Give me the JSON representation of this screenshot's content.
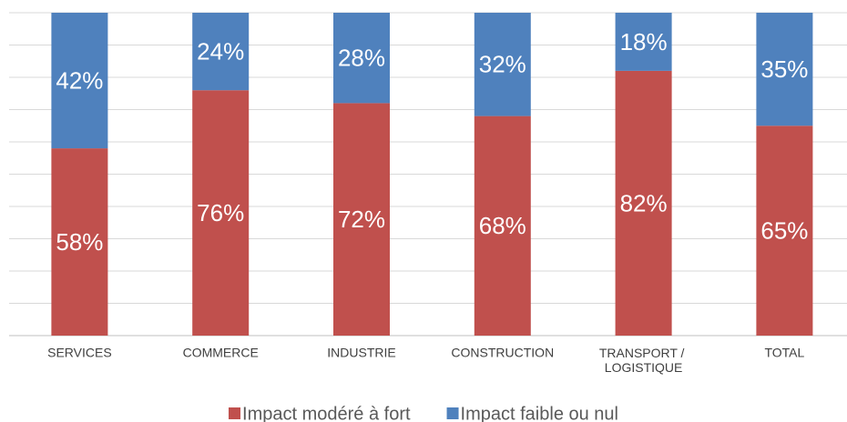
{
  "chart_data": {
    "type": "stacked_bar",
    "categories": [
      "SERVICES",
      "COMMERCE",
      "INDUSTRIE",
      "CONSTRUCTION",
      "TRANSPORT / LOGISTIQUE",
      "TOTAL"
    ],
    "series": [
      {
        "name": "Impact modéré à fort",
        "color": "#c0504d",
        "values": [
          58,
          76,
          72,
          68,
          82,
          65
        ],
        "value_labels": [
          "58%",
          "76%",
          "72%",
          "68%",
          "82%",
          "65%"
        ]
      },
      {
        "name": "Impact faible ou nul",
        "color": "#4f81bd",
        "values": [
          42,
          24,
          28,
          32,
          18,
          35
        ],
        "value_labels": [
          "42%",
          "24%",
          "28%",
          "32%",
          "18%",
          "35%"
        ]
      }
    ],
    "ylim": [
      0,
      100
    ],
    "yticks": [
      0,
      10,
      20,
      30,
      40,
      50,
      60,
      70,
      80,
      90,
      100
    ],
    "grid": true,
    "legend": "bottom"
  }
}
